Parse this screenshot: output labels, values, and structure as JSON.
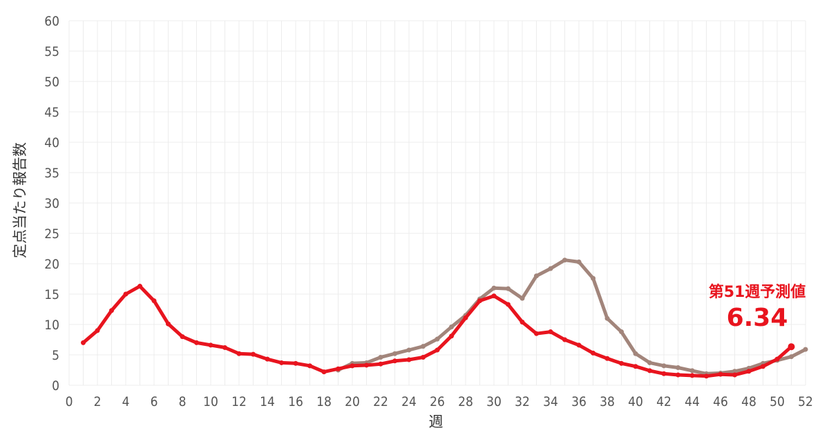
{
  "chart_data": {
    "type": "line",
    "xlabel": "週",
    "ylabel": "定点当たり報告数",
    "xlim": [
      0,
      52
    ],
    "ylim": [
      0,
      60
    ],
    "x_ticks": [
      0,
      2,
      4,
      6,
      8,
      10,
      12,
      14,
      16,
      18,
      20,
      22,
      24,
      26,
      28,
      30,
      32,
      34,
      36,
      38,
      40,
      42,
      44,
      46,
      48,
      50,
      52
    ],
    "y_ticks": [
      0,
      5,
      10,
      15,
      20,
      25,
      30,
      35,
      40,
      45,
      50,
      55,
      60
    ],
    "grid": true,
    "series": [
      {
        "color": "#a2857b",
        "x": [
          19,
          20,
          21,
          22,
          23,
          24,
          25,
          26,
          27,
          28,
          29,
          30,
          31,
          32,
          33,
          34,
          35,
          36,
          37,
          38,
          39,
          40,
          41,
          42,
          43,
          44,
          45,
          46,
          47,
          48,
          49,
          50,
          51,
          52
        ],
        "values": [
          2.5,
          3.6,
          3.7,
          4.6,
          5.2,
          5.8,
          6.4,
          7.6,
          9.6,
          11.5,
          14.2,
          16.0,
          15.9,
          14.3,
          18.0,
          19.2,
          20.6,
          20.3,
          17.6,
          11.0,
          8.8,
          5.2,
          3.7,
          3.2,
          2.9,
          2.4,
          1.9,
          2.0,
          2.3,
          2.8,
          3.6,
          4.1,
          4.7,
          5.9
        ]
      },
      {
        "color": "#e8141e",
        "x": [
          1,
          2,
          3,
          4,
          5,
          6,
          7,
          8,
          9,
          10,
          11,
          12,
          13,
          14,
          15,
          16,
          17,
          18,
          19,
          20,
          21,
          22,
          23,
          24,
          25,
          26,
          27,
          28,
          29,
          30,
          31,
          32,
          33,
          34,
          35,
          36,
          37,
          38,
          39,
          40,
          41,
          42,
          43,
          44,
          45,
          46,
          47,
          48,
          49,
          50,
          51
        ],
        "values": [
          7.0,
          9.0,
          12.3,
          15.0,
          16.3,
          13.9,
          10.1,
          8.0,
          7.0,
          6.6,
          6.2,
          5.2,
          5.1,
          4.3,
          3.7,
          3.6,
          3.2,
          2.2,
          2.7,
          3.2,
          3.3,
          3.5,
          4.0,
          4.2,
          4.6,
          5.8,
          8.1,
          11.1,
          13.9,
          14.7,
          13.3,
          10.4,
          8.5,
          8.8,
          7.5,
          6.6,
          5.3,
          4.4,
          3.6,
          3.1,
          2.4,
          1.9,
          1.7,
          1.6,
          1.5,
          1.8,
          1.7,
          2.3,
          3.1,
          4.3,
          6.34
        ]
      }
    ],
    "annotation": {
      "label": "第51週予測値",
      "value": "6.34"
    }
  }
}
